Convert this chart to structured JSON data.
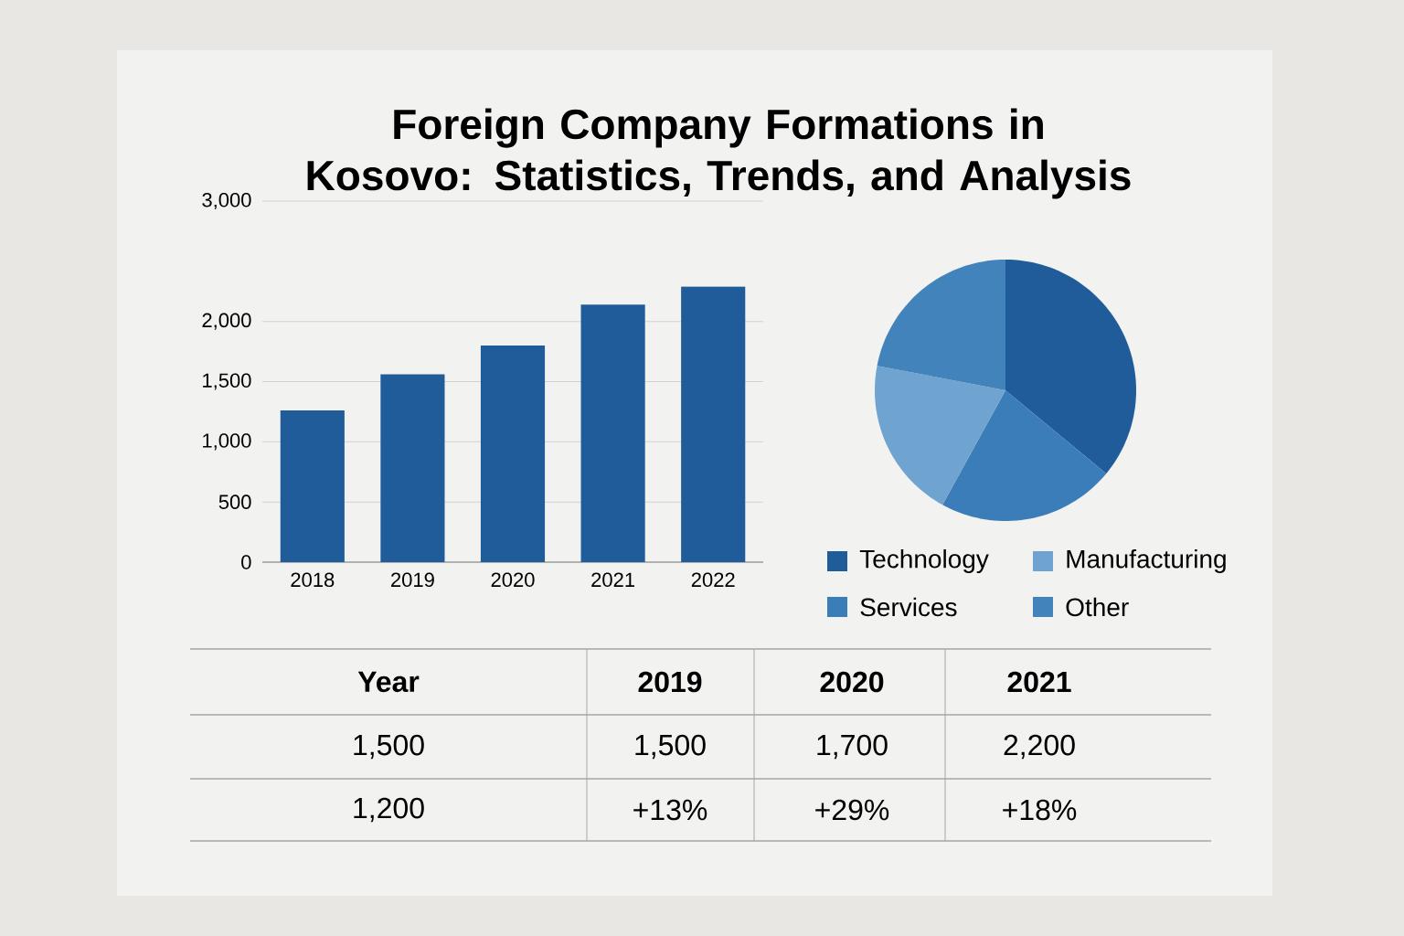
{
  "chart_data": [
    {
      "type": "bar",
      "title": "Foreign Company Formations in Kosovo: Statistics, Trends, and Analysis",
      "categories": [
        "2018",
        "2019",
        "2020",
        "2021",
        "2022"
      ],
      "values": [
        1260,
        1560,
        1800,
        2140,
        2290
      ],
      "color": "#1f5c99",
      "ylim": [
        0,
        3000
      ],
      "yticks": [
        0,
        500,
        {
          "value": 1000,
          "label": "1,000"
        },
        {
          "value": 1500,
          "label": "1,500"
        },
        {
          "value": 2000,
          "label": "2,000"
        },
        {
          "value": 3000,
          "label": "3,000"
        }
      ],
      "grid": "y"
    },
    {
      "type": "pie",
      "categories": [
        "Technology",
        "Services",
        "Manufacturing",
        "Other"
      ],
      "values": [
        36,
        22,
        20,
        22
      ],
      "colors": [
        "#1f5c99",
        "#3a7db8",
        "#6fa3d0",
        "#4383bb"
      ],
      "legend": "bottom"
    },
    {
      "type": "other",
      "annotations": [
        "Year",
        "2019",
        "2020",
        "2021",
        "1,500",
        "1,500",
        "1,700",
        "2,200",
        "1,200",
        "+13%",
        "+29%",
        "+18%"
      ]
    }
  ]
}
